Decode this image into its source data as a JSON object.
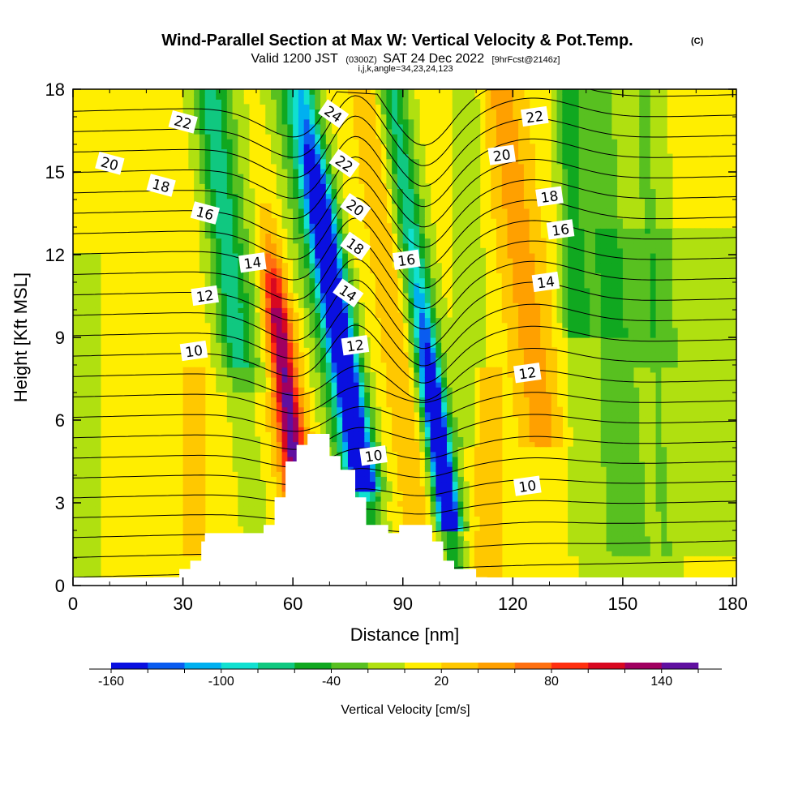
{
  "header": {
    "title": "Wind-Parallel Section at Max W: Vertical Velocity & Pot.Temp.",
    "title_mark": "(C)",
    "subtitle_a": "Valid 1200 JST",
    "subtitle_b": "(0300Z)",
    "subtitle_c": "SAT 24 Dec 2022",
    "subtitle_d": "[9hrFcst@2146z]",
    "subtitle_e": "i,j,k,angle=34,23,24,123"
  },
  "chart_data": {
    "type": "heatmap",
    "xlabel": "Distance [nm]",
    "ylabel": "Height [Kft MSL]",
    "xlim": [
      0,
      181
    ],
    "ylim": [
      0,
      18
    ],
    "x_ticks": [
      0,
      30,
      60,
      90,
      120,
      150,
      180
    ],
    "y_ticks": [
      0,
      3,
      6,
      9,
      12,
      15,
      18
    ],
    "colorbar": {
      "title": "Vertical Velocity [cm/s]",
      "min": -160,
      "max": 160,
      "step": 20,
      "tick_values": [
        -160,
        -100,
        -40,
        20,
        80,
        140
      ],
      "tick_labels": [
        "-160",
        "-100",
        "-40",
        "20",
        "80",
        "140"
      ],
      "colors": [
        "#0a10e0",
        "#0a5cf0",
        "#00b0f0",
        "#10e0d0",
        "#10c880",
        "#10a820",
        "#58c020",
        "#b0e010",
        "#ffee00",
        "#ffc800",
        "#ffa000",
        "#ff7010",
        "#ff3010",
        "#d80820",
        "#a00060",
        "#6010a0"
      ]
    },
    "updraft_columns": [
      {
        "x0": 58,
        "x1": 63,
        "peak_cm_s": 100,
        "top_kft": 11
      },
      {
        "x0": 66,
        "x1": 72,
        "peak_cm_s": 40,
        "top_kft": 18
      },
      {
        "x0": 88,
        "x1": 93,
        "peak_cm_s": 40,
        "top_kft": 18
      },
      {
        "x0": 120,
        "x1": 130,
        "peak_cm_s": 40,
        "top_kft": 16
      },
      {
        "x0": 31,
        "x1": 36,
        "peak_cm_s": 40,
        "top_kft": 7
      }
    ],
    "downdraft_columns": [
      {
        "x0": 70,
        "x1": 80,
        "peak_cm_s": -160,
        "top_kft": 18
      },
      {
        "x0": 95,
        "x1": 103,
        "peak_cm_s": -160,
        "top_kft": 8
      },
      {
        "x0": 38,
        "x1": 45,
        "peak_cm_s": -40,
        "top_kft": 18
      },
      {
        "x0": 135,
        "x1": 140,
        "peak_cm_s": -40,
        "top_kft": 18
      }
    ],
    "theta_contour_labels": [
      {
        "value": "10",
        "x": 33,
        "y": 8.5
      },
      {
        "value": "12",
        "x": 36,
        "y": 10.5
      },
      {
        "value": "14",
        "x": 49,
        "y": 11.7
      },
      {
        "value": "16",
        "x": 36,
        "y": 13.5
      },
      {
        "value": "18",
        "x": 24,
        "y": 14.5
      },
      {
        "value": "20",
        "x": 10,
        "y": 15.3
      },
      {
        "value": "22",
        "x": 30,
        "y": 16.8
      },
      {
        "value": "24",
        "x": 71,
        "y": 17.1
      },
      {
        "value": "22",
        "x": 74,
        "y": 15.3
      },
      {
        "value": "20",
        "x": 77,
        "y": 13.7
      },
      {
        "value": "18",
        "x": 77,
        "y": 12.3
      },
      {
        "value": "16",
        "x": 91,
        "y": 11.8
      },
      {
        "value": "14",
        "x": 75,
        "y": 10.6
      },
      {
        "value": "12",
        "x": 77,
        "y": 8.7
      },
      {
        "value": "10",
        "x": 82,
        "y": 4.7
      },
      {
        "value": "12",
        "x": 124,
        "y": 7.7
      },
      {
        "value": "10",
        "x": 124,
        "y": 3.6
      },
      {
        "value": "14",
        "x": 129,
        "y": 11.0
      },
      {
        "value": "16",
        "x": 133,
        "y": 12.9
      },
      {
        "value": "18",
        "x": 130,
        "y": 14.1
      },
      {
        "value": "20",
        "x": 117,
        "y": 15.6
      },
      {
        "value": "22",
        "x": 126,
        "y": 17.0
      }
    ],
    "terrain_profile": [
      [
        22,
        0
      ],
      [
        22,
        0.3
      ],
      [
        29,
        0.3
      ],
      [
        29,
        0.6
      ],
      [
        32,
        0.6
      ],
      [
        32,
        0.9
      ],
      [
        35,
        0.9
      ],
      [
        35,
        1.6
      ],
      [
        36,
        1.6
      ],
      [
        36,
        1.9
      ],
      [
        52,
        1.9
      ],
      [
        52,
        2.2
      ],
      [
        55,
        2.2
      ],
      [
        55,
        3.2
      ],
      [
        58,
        3.2
      ],
      [
        58,
        4.5
      ],
      [
        61,
        4.5
      ],
      [
        61,
        5.1
      ],
      [
        64,
        5.1
      ],
      [
        64,
        5.5
      ],
      [
        70,
        5.5
      ],
      [
        70,
        4.7
      ],
      [
        73,
        4.7
      ],
      [
        73,
        4.2
      ],
      [
        77,
        4.2
      ],
      [
        77,
        3.2
      ],
      [
        80,
        3.2
      ],
      [
        80,
        2.2
      ],
      [
        86,
        2.2
      ],
      [
        86,
        1.9
      ],
      [
        89,
        1.9
      ],
      [
        89,
        2.2
      ],
      [
        98,
        2.2
      ],
      [
        98,
        1.6
      ],
      [
        101,
        1.6
      ],
      [
        101,
        0.9
      ],
      [
        104,
        0.9
      ],
      [
        104,
        0.6
      ],
      [
        110,
        0.6
      ],
      [
        110,
        0.3
      ],
      [
        113,
        0.3
      ],
      [
        113,
        0
      ]
    ]
  }
}
